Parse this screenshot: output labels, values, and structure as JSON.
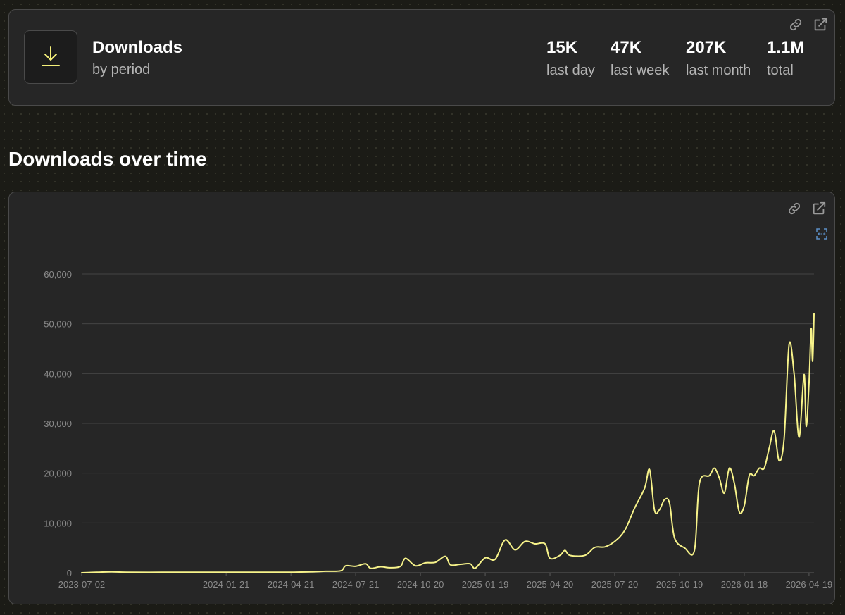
{
  "summary": {
    "title": "Downloads",
    "subtitle": "by period",
    "stats": [
      {
        "value": "15K",
        "label": "last day"
      },
      {
        "value": "47K",
        "label": "last week"
      },
      {
        "value": "207K",
        "label": "last month"
      },
      {
        "value": "1.1M",
        "label": "total"
      }
    ]
  },
  "section_title": "Downloads over time",
  "colors": {
    "accent": "#f5f07a",
    "line": "#f7f38a",
    "card": "#262626",
    "border": "#4a4a4a"
  },
  "icons": [
    "download-icon",
    "link-icon",
    "external-link-icon",
    "fullscreen-icon"
  ],
  "chart_data": {
    "type": "line",
    "title": "",
    "xlabel": "",
    "ylabel": "",
    "x_ticks": [
      "2023-07-02",
      "2024-01-21",
      "2024-04-21",
      "2024-07-21",
      "2024-10-20",
      "2025-01-19",
      "2025-04-20",
      "2025-07-20",
      "2025-10-19",
      "2026-01-18",
      "2026-04-19"
    ],
    "y_ticks": [
      0,
      10000,
      20000,
      30000,
      40000,
      50000,
      60000
    ],
    "ylim": [
      0,
      60000
    ],
    "xlim": [
      "2023-07-02",
      "2026-04-26"
    ],
    "grid": true,
    "series": [
      {
        "values": [
          [
            "2023-07-02",
            0
          ],
          [
            "2023-07-23",
            100
          ],
          [
            "2023-08-13",
            200
          ],
          [
            "2023-09-03",
            100
          ],
          [
            "2023-10-22",
            100
          ],
          [
            "2023-12-10",
            100
          ],
          [
            "2024-01-21",
            100
          ],
          [
            "2024-03-10",
            100
          ],
          [
            "2024-04-21",
            100
          ],
          [
            "2024-05-19",
            200
          ],
          [
            "2024-06-09",
            300
          ],
          [
            "2024-06-30",
            400
          ],
          [
            "2024-07-07",
            1400
          ],
          [
            "2024-07-21",
            1300
          ],
          [
            "2024-08-04",
            1800
          ],
          [
            "2024-08-11",
            900
          ],
          [
            "2024-08-25",
            1200
          ],
          [
            "2024-09-08",
            1000
          ],
          [
            "2024-09-22",
            1300
          ],
          [
            "2024-09-29",
            2900
          ],
          [
            "2024-10-13",
            1400
          ],
          [
            "2024-10-27",
            2000
          ],
          [
            "2024-11-10",
            2100
          ],
          [
            "2024-11-24",
            3300
          ],
          [
            "2024-12-01",
            1600
          ],
          [
            "2024-12-15",
            1700
          ],
          [
            "2024-12-29",
            1800
          ],
          [
            "2025-01-05",
            900
          ],
          [
            "2025-01-19",
            3000
          ],
          [
            "2025-02-02",
            2700
          ],
          [
            "2025-02-16",
            6600
          ],
          [
            "2025-03-02",
            4600
          ],
          [
            "2025-03-16",
            6300
          ],
          [
            "2025-03-30",
            5800
          ],
          [
            "2025-04-13",
            5800
          ],
          [
            "2025-04-20",
            2900
          ],
          [
            "2025-05-04",
            3500
          ],
          [
            "2025-05-11",
            4500
          ],
          [
            "2025-05-18",
            3500
          ],
          [
            "2025-06-08",
            3500
          ],
          [
            "2025-06-22",
            5100
          ],
          [
            "2025-07-06",
            5200
          ],
          [
            "2025-07-20",
            6300
          ],
          [
            "2025-08-03",
            8500
          ],
          [
            "2025-08-17",
            13000
          ],
          [
            "2025-08-31",
            17000
          ],
          [
            "2025-09-07",
            20700
          ],
          [
            "2025-09-14",
            12500
          ],
          [
            "2025-09-21",
            12700
          ],
          [
            "2025-09-28",
            14700
          ],
          [
            "2025-10-05",
            14000
          ],
          [
            "2025-10-12",
            7000
          ],
          [
            "2025-10-26",
            5000
          ],
          [
            "2025-11-09",
            4500
          ],
          [
            "2025-11-16",
            18000
          ],
          [
            "2025-11-30",
            19500
          ],
          [
            "2025-12-07",
            21000
          ],
          [
            "2025-12-14",
            19000
          ],
          [
            "2025-12-21",
            16000
          ],
          [
            "2025-12-28",
            21000
          ],
          [
            "2026-01-04",
            18000
          ],
          [
            "2026-01-11",
            12200
          ],
          [
            "2026-01-18",
            13500
          ],
          [
            "2026-01-25",
            19500
          ],
          [
            "2026-02-01",
            19500
          ],
          [
            "2026-02-08",
            21000
          ],
          [
            "2026-02-15",
            21000
          ],
          [
            "2026-02-22",
            25000
          ],
          [
            "2026-03-01",
            28500
          ],
          [
            "2026-03-08",
            22500
          ],
          [
            "2026-03-15",
            27000
          ],
          [
            "2026-03-22",
            45800
          ],
          [
            "2026-03-29",
            40000
          ],
          [
            "2026-04-05",
            27200
          ],
          [
            "2026-04-12",
            39800
          ],
          [
            "2026-04-15",
            29400
          ],
          [
            "2026-04-19",
            38000
          ],
          [
            "2026-04-22",
            49000
          ],
          [
            "2026-04-24",
            42500
          ],
          [
            "2026-04-26",
            52000
          ]
        ]
      }
    ]
  }
}
